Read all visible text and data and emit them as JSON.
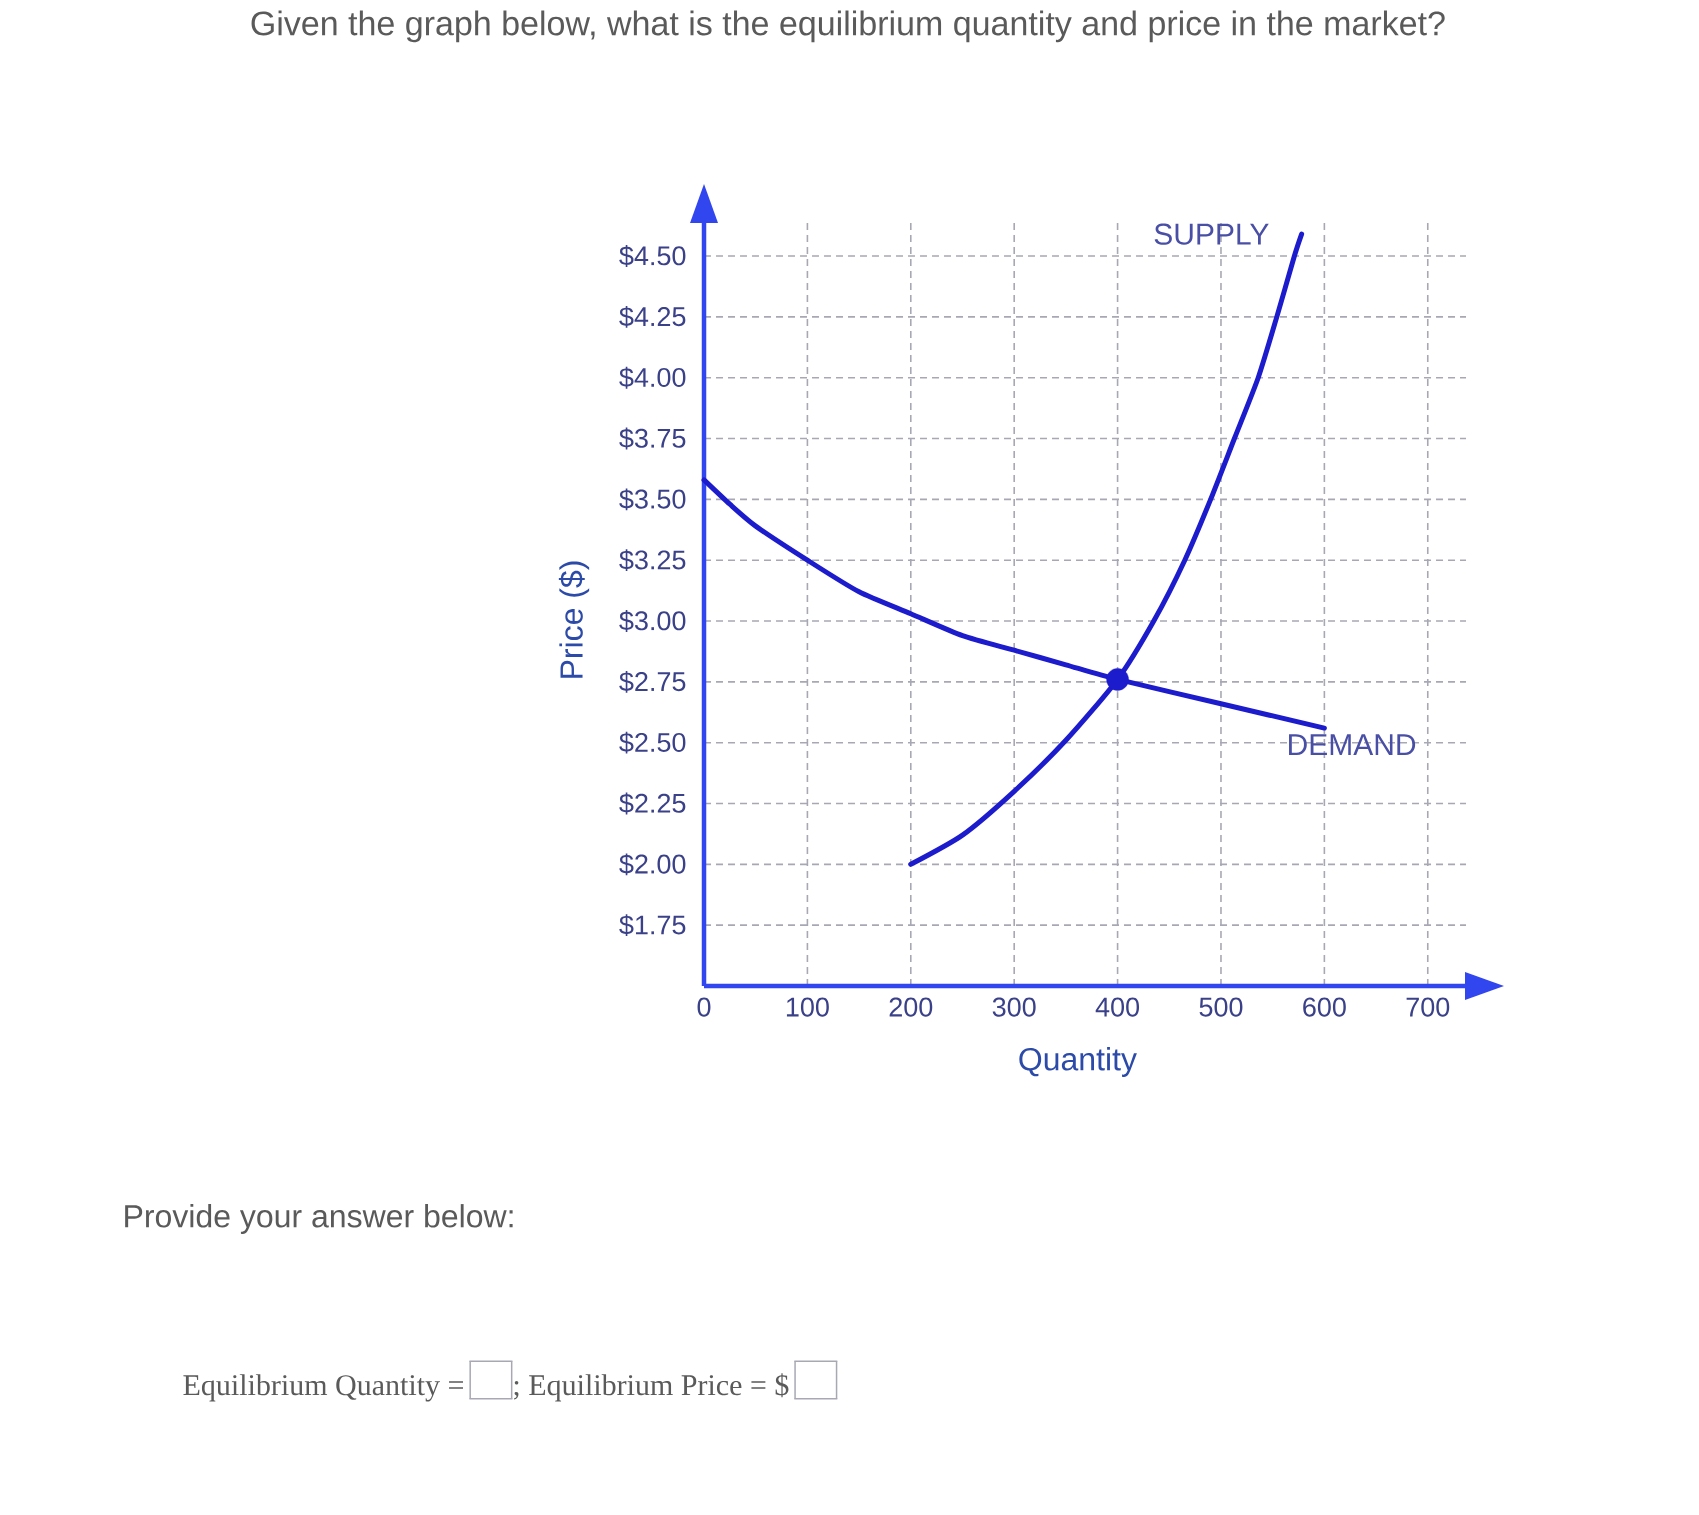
{
  "chart_data": {
    "type": "line",
    "title": "Given the graph below, what is the equilibrium quantity and price in the market?",
    "xlabel": "Quantity",
    "ylabel": "Price ($)",
    "xlim": [
      0,
      737
    ],
    "ylim": [
      1.5,
      4.64
    ],
    "xticks": [
      0,
      100,
      200,
      300,
      400,
      500,
      600,
      700
    ],
    "yticks": [
      {
        "value": 1.75,
        "label": "$1.75"
      },
      {
        "value": 2.0,
        "label": "$2.00"
      },
      {
        "value": 2.25,
        "label": "$2.25"
      },
      {
        "value": 2.5,
        "label": "$2.50"
      },
      {
        "value": 2.75,
        "label": "$2.75"
      },
      {
        "value": 3.0,
        "label": "$3.00"
      },
      {
        "value": 3.25,
        "label": "$3.25"
      },
      {
        "value": 3.5,
        "label": "$3.50"
      },
      {
        "value": 3.75,
        "label": "$3.75"
      },
      {
        "value": 4.0,
        "label": "$4.00"
      },
      {
        "value": 4.25,
        "label": "$4.25"
      },
      {
        "value": 4.5,
        "label": "$4.50"
      }
    ],
    "grid": true,
    "series": [
      {
        "name": "SUPPLY",
        "color": "#1c1ccc",
        "x": [
          200,
          250,
          300,
          350,
          400,
          435,
          465,
          490,
          513,
          536,
          554,
          571,
          578
        ],
        "values": [
          2.0,
          2.12,
          2.3,
          2.51,
          2.76,
          3.0,
          3.25,
          3.5,
          3.75,
          4.0,
          4.25,
          4.5,
          4.59
        ]
      },
      {
        "name": "DEMAND",
        "color": "#1c1ccc",
        "x": [
          0,
          25,
          50,
          100,
          150,
          200,
          250,
          300,
          350,
          400,
          500,
          600
        ],
        "values": [
          3.58,
          3.48,
          3.39,
          3.25,
          3.12,
          3.03,
          2.94,
          2.88,
          2.82,
          2.76,
          2.66,
          2.56
        ]
      },
      {
        "type": "scatter",
        "color": "#1c1ccc",
        "marker": "circle",
        "x": [
          400
        ],
        "values": [
          2.76
        ]
      }
    ],
    "annotations": [
      "Provide your answer below:",
      "Equilibrium Quantity =",
      "; Equilibrium Price = $"
    ]
  }
}
